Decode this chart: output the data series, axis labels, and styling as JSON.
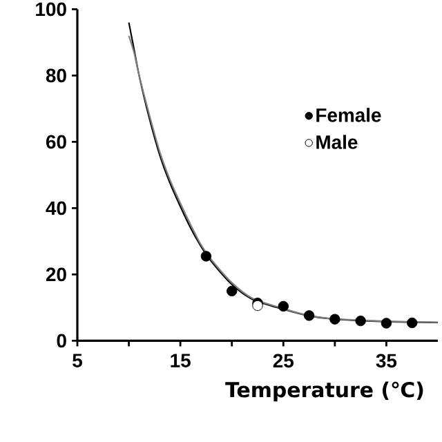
{
  "chart_data": {
    "type": "scatter",
    "xlabel": "Temperature (℃)",
    "xlim": [
      5,
      40
    ],
    "ylim": [
      0,
      100
    ],
    "xticks": [
      5,
      {
        "value": 10,
        "label": null
      },
      15,
      {
        "value": 20,
        "label": null
      },
      25,
      {
        "value": 30,
        "label": null
      },
      35
    ],
    "yticks": [
      0,
      20,
      40,
      60,
      80,
      100
    ],
    "legend": "right",
    "series": [
      {
        "type": "line",
        "marker": "none",
        "color": "#000000",
        "x": [
          10,
          10.5,
          11,
          12,
          13,
          14,
          15,
          16,
          17,
          18,
          20,
          22,
          25,
          27.5,
          30,
          35,
          40
        ],
        "values": [
          96,
          88,
          80,
          67,
          56,
          47.5,
          40.5,
          34,
          28.5,
          24,
          17,
          12.5,
          9.5,
          7.5,
          6.5,
          5.8,
          5.5
        ]
      },
      {
        "type": "line",
        "marker": "none",
        "color": "#808080",
        "x": [
          10,
          10.5,
          11,
          12,
          13,
          14,
          15,
          16,
          17,
          18,
          20,
          22,
          25,
          27.5,
          30,
          35,
          40
        ],
        "values": [
          92,
          87,
          80,
          68,
          57,
          48.5,
          41.5,
          35,
          29,
          24.5,
          17.5,
          12.8,
          9.7,
          7.6,
          6.6,
          5.9,
          5.6
        ]
      },
      {
        "name": "Female",
        "marker": "circle",
        "color": "#000000",
        "x": [
          17.5,
          20,
          22.5,
          25,
          27.5,
          30,
          32.5,
          35,
          37.5
        ],
        "values": [
          25.5,
          15,
          11.4,
          10.4,
          7.6,
          6.5,
          6.0,
          5.3,
          5.4
        ]
      },
      {
        "name": "Male",
        "marker": "circle",
        "color": "#ffffff",
        "x": [
          22.5
        ],
        "values": [
          10.6
        ]
      }
    ]
  }
}
